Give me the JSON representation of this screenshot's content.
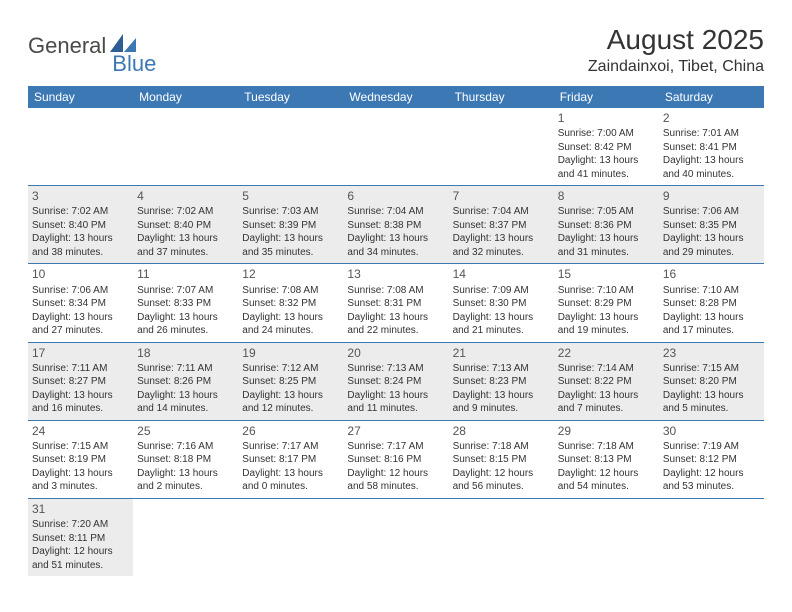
{
  "logo": {
    "part1": "General",
    "part2": "Blue"
  },
  "title": "August 2025",
  "location": "Zaindainxoi, Tibet, China",
  "colors": {
    "header_bg": "#3c78b4",
    "header_text": "#ffffff",
    "shaded_row": "#ececec",
    "border": "#3c78b4",
    "logo_blue": "#3c78b4",
    "logo_gray": "#4a4a4a"
  },
  "day_headers": [
    "Sunday",
    "Monday",
    "Tuesday",
    "Wednesday",
    "Thursday",
    "Friday",
    "Saturday"
  ],
  "weeks": [
    {
      "shaded": false,
      "days": [
        null,
        null,
        null,
        null,
        null,
        {
          "n": "1",
          "sr": "Sunrise: 7:00 AM",
          "ss": "Sunset: 8:42 PM",
          "d1": "Daylight: 13 hours",
          "d2": "and 41 minutes."
        },
        {
          "n": "2",
          "sr": "Sunrise: 7:01 AM",
          "ss": "Sunset: 8:41 PM",
          "d1": "Daylight: 13 hours",
          "d2": "and 40 minutes."
        }
      ]
    },
    {
      "shaded": true,
      "days": [
        {
          "n": "3",
          "sr": "Sunrise: 7:02 AM",
          "ss": "Sunset: 8:40 PM",
          "d1": "Daylight: 13 hours",
          "d2": "and 38 minutes."
        },
        {
          "n": "4",
          "sr": "Sunrise: 7:02 AM",
          "ss": "Sunset: 8:40 PM",
          "d1": "Daylight: 13 hours",
          "d2": "and 37 minutes."
        },
        {
          "n": "5",
          "sr": "Sunrise: 7:03 AM",
          "ss": "Sunset: 8:39 PM",
          "d1": "Daylight: 13 hours",
          "d2": "and 35 minutes."
        },
        {
          "n": "6",
          "sr": "Sunrise: 7:04 AM",
          "ss": "Sunset: 8:38 PM",
          "d1": "Daylight: 13 hours",
          "d2": "and 34 minutes."
        },
        {
          "n": "7",
          "sr": "Sunrise: 7:04 AM",
          "ss": "Sunset: 8:37 PM",
          "d1": "Daylight: 13 hours",
          "d2": "and 32 minutes."
        },
        {
          "n": "8",
          "sr": "Sunrise: 7:05 AM",
          "ss": "Sunset: 8:36 PM",
          "d1": "Daylight: 13 hours",
          "d2": "and 31 minutes."
        },
        {
          "n": "9",
          "sr": "Sunrise: 7:06 AM",
          "ss": "Sunset: 8:35 PM",
          "d1": "Daylight: 13 hours",
          "d2": "and 29 minutes."
        }
      ]
    },
    {
      "shaded": false,
      "days": [
        {
          "n": "10",
          "sr": "Sunrise: 7:06 AM",
          "ss": "Sunset: 8:34 PM",
          "d1": "Daylight: 13 hours",
          "d2": "and 27 minutes."
        },
        {
          "n": "11",
          "sr": "Sunrise: 7:07 AM",
          "ss": "Sunset: 8:33 PM",
          "d1": "Daylight: 13 hours",
          "d2": "and 26 minutes."
        },
        {
          "n": "12",
          "sr": "Sunrise: 7:08 AM",
          "ss": "Sunset: 8:32 PM",
          "d1": "Daylight: 13 hours",
          "d2": "and 24 minutes."
        },
        {
          "n": "13",
          "sr": "Sunrise: 7:08 AM",
          "ss": "Sunset: 8:31 PM",
          "d1": "Daylight: 13 hours",
          "d2": "and 22 minutes."
        },
        {
          "n": "14",
          "sr": "Sunrise: 7:09 AM",
          "ss": "Sunset: 8:30 PM",
          "d1": "Daylight: 13 hours",
          "d2": "and 21 minutes."
        },
        {
          "n": "15",
          "sr": "Sunrise: 7:10 AM",
          "ss": "Sunset: 8:29 PM",
          "d1": "Daylight: 13 hours",
          "d2": "and 19 minutes."
        },
        {
          "n": "16",
          "sr": "Sunrise: 7:10 AM",
          "ss": "Sunset: 8:28 PM",
          "d1": "Daylight: 13 hours",
          "d2": "and 17 minutes."
        }
      ]
    },
    {
      "shaded": true,
      "days": [
        {
          "n": "17",
          "sr": "Sunrise: 7:11 AM",
          "ss": "Sunset: 8:27 PM",
          "d1": "Daylight: 13 hours",
          "d2": "and 16 minutes."
        },
        {
          "n": "18",
          "sr": "Sunrise: 7:11 AM",
          "ss": "Sunset: 8:26 PM",
          "d1": "Daylight: 13 hours",
          "d2": "and 14 minutes."
        },
        {
          "n": "19",
          "sr": "Sunrise: 7:12 AM",
          "ss": "Sunset: 8:25 PM",
          "d1": "Daylight: 13 hours",
          "d2": "and 12 minutes."
        },
        {
          "n": "20",
          "sr": "Sunrise: 7:13 AM",
          "ss": "Sunset: 8:24 PM",
          "d1": "Daylight: 13 hours",
          "d2": "and 11 minutes."
        },
        {
          "n": "21",
          "sr": "Sunrise: 7:13 AM",
          "ss": "Sunset: 8:23 PM",
          "d1": "Daylight: 13 hours",
          "d2": "and 9 minutes."
        },
        {
          "n": "22",
          "sr": "Sunrise: 7:14 AM",
          "ss": "Sunset: 8:22 PM",
          "d1": "Daylight: 13 hours",
          "d2": "and 7 minutes."
        },
        {
          "n": "23",
          "sr": "Sunrise: 7:15 AM",
          "ss": "Sunset: 8:20 PM",
          "d1": "Daylight: 13 hours",
          "d2": "and 5 minutes."
        }
      ]
    },
    {
      "shaded": false,
      "days": [
        {
          "n": "24",
          "sr": "Sunrise: 7:15 AM",
          "ss": "Sunset: 8:19 PM",
          "d1": "Daylight: 13 hours",
          "d2": "and 3 minutes."
        },
        {
          "n": "25",
          "sr": "Sunrise: 7:16 AM",
          "ss": "Sunset: 8:18 PM",
          "d1": "Daylight: 13 hours",
          "d2": "and 2 minutes."
        },
        {
          "n": "26",
          "sr": "Sunrise: 7:17 AM",
          "ss": "Sunset: 8:17 PM",
          "d1": "Daylight: 13 hours",
          "d2": "and 0 minutes."
        },
        {
          "n": "27",
          "sr": "Sunrise: 7:17 AM",
          "ss": "Sunset: 8:16 PM",
          "d1": "Daylight: 12 hours",
          "d2": "and 58 minutes."
        },
        {
          "n": "28",
          "sr": "Sunrise: 7:18 AM",
          "ss": "Sunset: 8:15 PM",
          "d1": "Daylight: 12 hours",
          "d2": "and 56 minutes."
        },
        {
          "n": "29",
          "sr": "Sunrise: 7:18 AM",
          "ss": "Sunset: 8:13 PM",
          "d1": "Daylight: 12 hours",
          "d2": "and 54 minutes."
        },
        {
          "n": "30",
          "sr": "Sunrise: 7:19 AM",
          "ss": "Sunset: 8:12 PM",
          "d1": "Daylight: 12 hours",
          "d2": "and 53 minutes."
        }
      ]
    },
    {
      "shaded": true,
      "days": [
        {
          "n": "31",
          "sr": "Sunrise: 7:20 AM",
          "ss": "Sunset: 8:11 PM",
          "d1": "Daylight: 12 hours",
          "d2": "and 51 minutes."
        },
        null,
        null,
        null,
        null,
        null,
        null
      ]
    }
  ]
}
